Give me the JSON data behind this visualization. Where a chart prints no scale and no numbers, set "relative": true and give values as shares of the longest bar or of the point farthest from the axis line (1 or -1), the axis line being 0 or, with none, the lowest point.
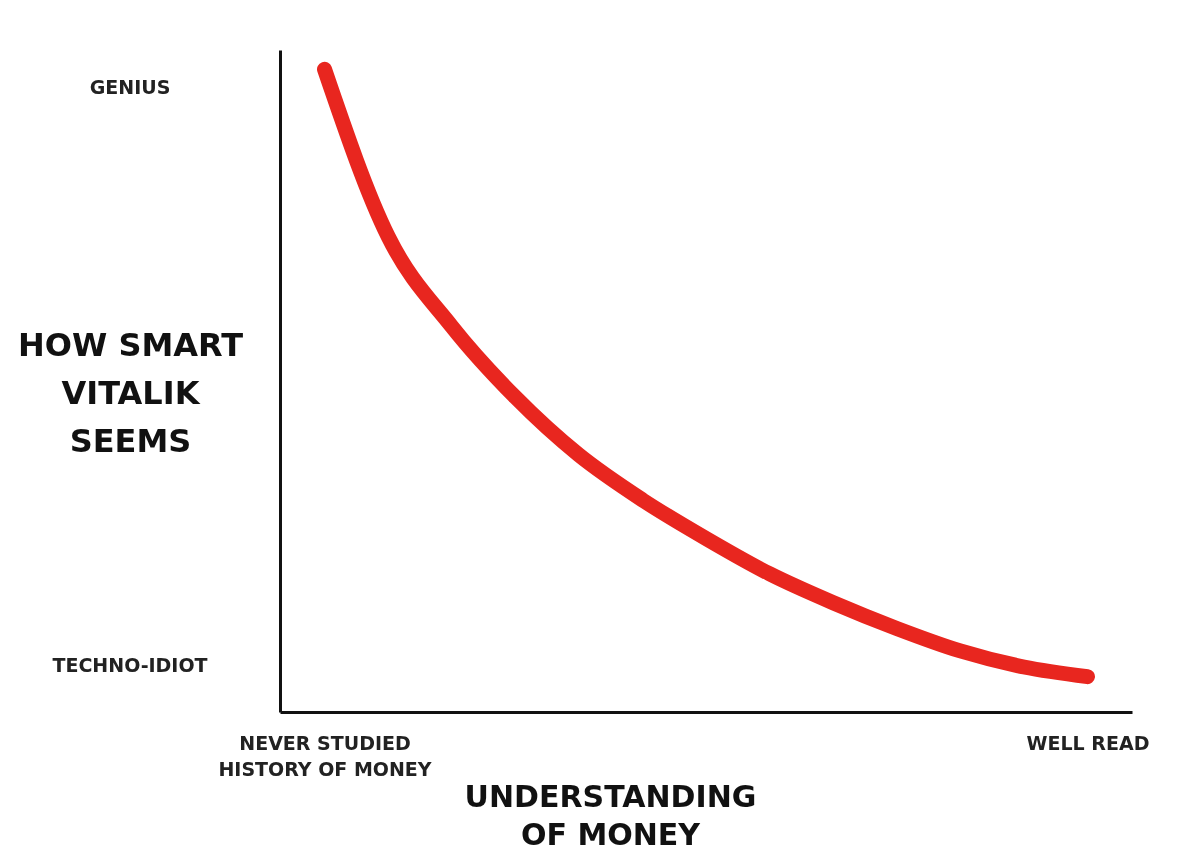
{
  "chart_data": {
    "type": "line",
    "relative": true,
    "xlabel": "UNDERSTANDING OF MONEY",
    "ylabel": "HOW SMART VITALIK SEEMS",
    "categories": [
      "NEVER STUDIED HISTORY OF MONEY",
      null,
      null,
      null,
      null,
      null,
      null,
      null,
      null,
      null,
      null,
      null,
      "WELL READ"
    ],
    "series": [
      {
        "color": "#e8261f",
        "values": [
          1,
          0.74,
          0.6,
          0.49,
          0.4,
          0.33,
          0.27,
          0.215,
          0.17,
          0.13,
          0.095,
          0.07,
          0.055
        ]
      }
    ],
    "annotations": [
      "GENIUS",
      "TECHNO-IDIOT"
    ],
    "grid": false,
    "line_style": "solid"
  }
}
